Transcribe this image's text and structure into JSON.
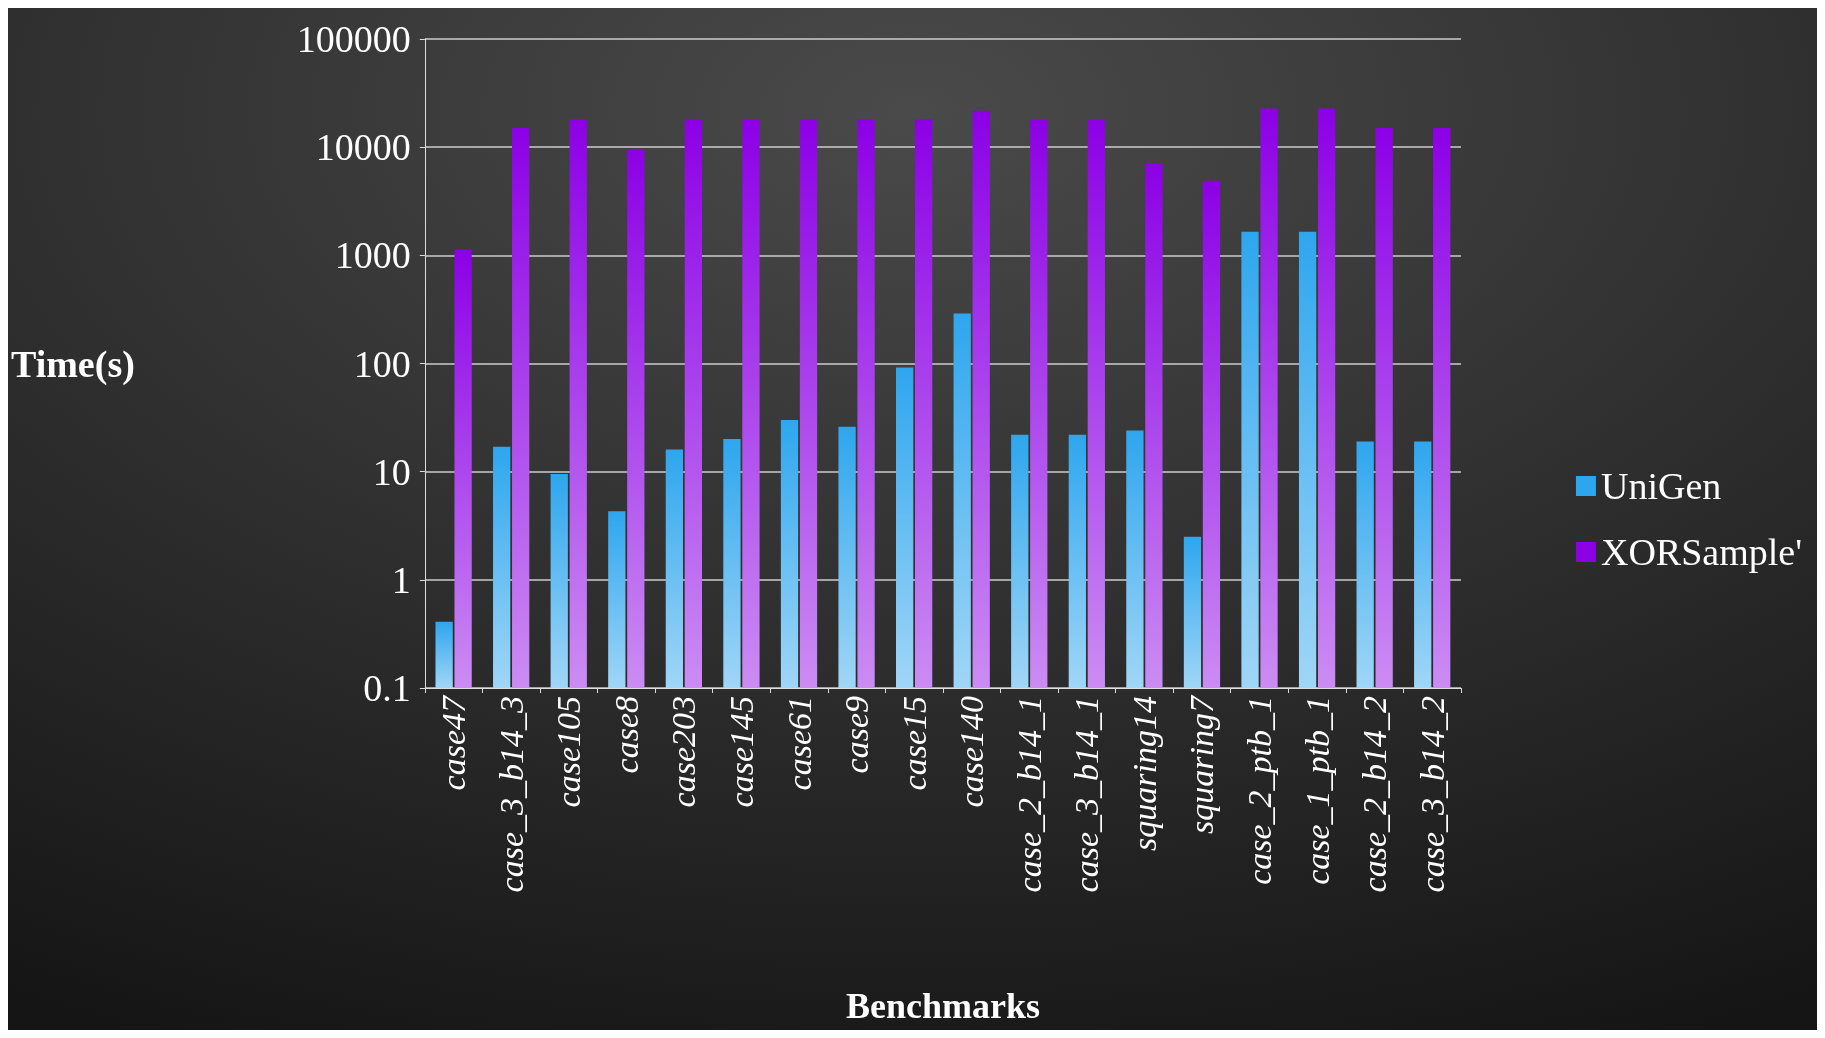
{
  "chart_data": {
    "type": "bar",
    "xlabel": "Benchmarks",
    "ylabel": "Time(s)",
    "categories": [
      "case47",
      "case_3_b14_3",
      "case105",
      "case8",
      "case203",
      "case145",
      "case61",
      "case9",
      "case15",
      "case140",
      "case_2_b14_1",
      "case_3_b14_1",
      "squaring14",
      "squaring7",
      "case_2_ptb_1",
      "case_1_ptb_1",
      "case_2_b14_2",
      "case_3_b14_2"
    ],
    "series": [
      {
        "name": "UniGen",
        "color": "#2ea6ee",
        "values": [
          0.41,
          17,
          9.5,
          4.3,
          16,
          20,
          30,
          26,
          92,
          290,
          22,
          22,
          24,
          2.5,
          1650,
          1650,
          19,
          19
        ]
      },
      {
        "name": "XORSample'",
        "color": "#8c00e6",
        "values": [
          1130,
          15000,
          18000,
          9500,
          18000,
          18000,
          18000,
          18000,
          18000,
          21700,
          18000,
          18000,
          7100,
          4900,
          22800,
          22800,
          15000,
          15000
        ]
      }
    ],
    "log": "y",
    "ylim": [
      0.1,
      100000
    ],
    "yticks": [
      0.1,
      1,
      10,
      100,
      1000,
      10000,
      100000
    ],
    "grid": "y",
    "legend": "right"
  }
}
